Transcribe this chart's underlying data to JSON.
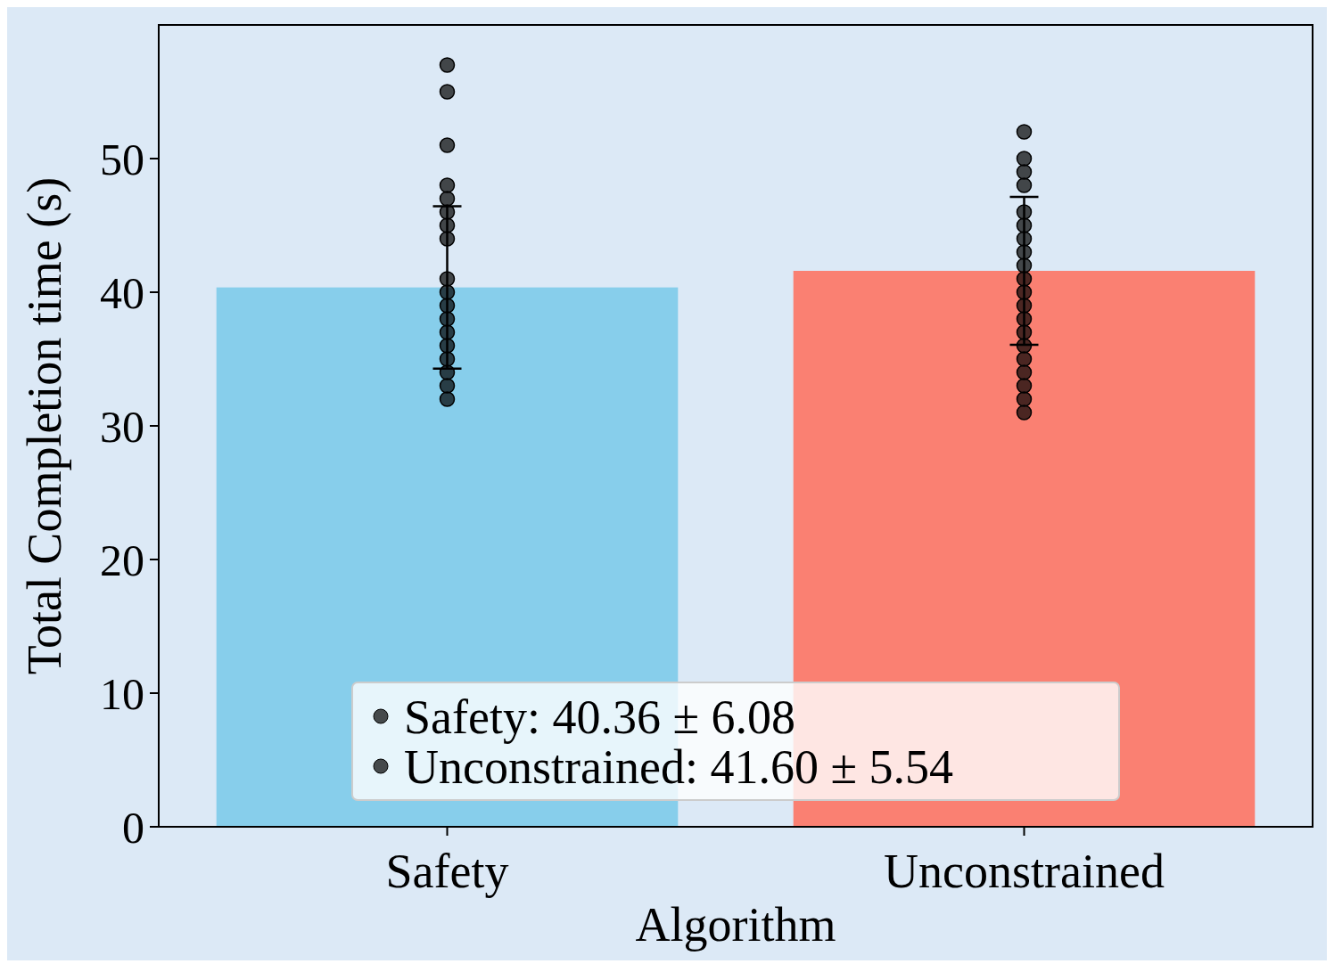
{
  "chart_data": {
    "type": "bar",
    "xlabel": "Algorithm",
    "ylabel": "Total Completion time (s)",
    "categories": [
      "Safety",
      "Unconstrained"
    ],
    "ylim": [
      0,
      60
    ],
    "yticks": [
      0,
      10,
      20,
      30,
      40,
      50
    ],
    "legend": "bottom",
    "grid": false,
    "series": [
      {
        "colors": [
          "#87ceeb",
          "#fa8072"
        ],
        "values": [
          40.36,
          41.6
        ],
        "errors": [
          6.08,
          5.54
        ]
      },
      {
        "type": "scatter",
        "name": "Safety: 40.36 ± 6.08",
        "color": "#000000",
        "x": [
          "Safety",
          "Safety",
          "Safety",
          "Safety",
          "Safety",
          "Safety",
          "Safety",
          "Safety",
          "Safety",
          "Safety",
          "Safety",
          "Safety",
          "Safety",
          "Safety",
          "Safety",
          "Safety",
          "Safety",
          "Safety"
        ],
        "values": [
          57,
          55,
          51,
          48,
          47,
          46,
          45,
          44,
          41,
          40,
          39,
          38,
          37,
          36,
          35,
          34,
          33,
          32
        ]
      },
      {
        "type": "scatter",
        "name": "Unconstrained: 41.60 ± 5.54",
        "color": "#000000",
        "x": [
          "Unconstrained",
          "Unconstrained",
          "Unconstrained",
          "Unconstrained",
          "Unconstrained",
          "Unconstrained",
          "Unconstrained",
          "Unconstrained",
          "Unconstrained",
          "Unconstrained",
          "Unconstrained",
          "Unconstrained",
          "Unconstrained",
          "Unconstrained",
          "Unconstrained",
          "Unconstrained",
          "Unconstrained",
          "Unconstrained",
          "Unconstrained",
          "Unconstrained"
        ],
        "values": [
          52,
          50,
          49,
          48,
          46,
          45,
          44,
          43,
          42,
          41,
          40,
          39,
          38,
          37,
          36,
          35,
          34,
          33,
          32,
          31
        ]
      }
    ]
  }
}
